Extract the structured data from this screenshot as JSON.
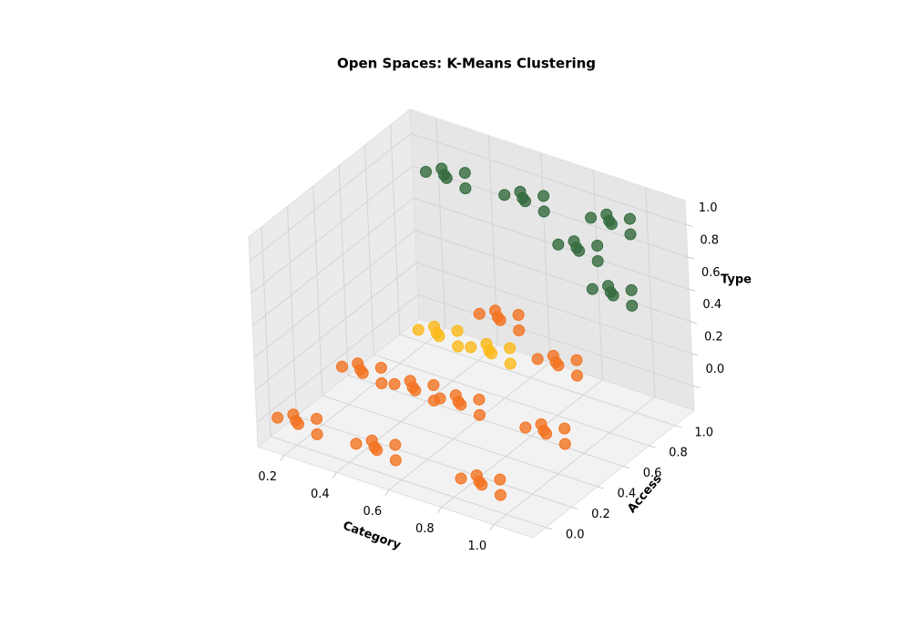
{
  "chart_data": {
    "type": "scatter3d",
    "title": "Open Spaces: K-Means Clustering",
    "xlabel": "Category",
    "ylabel": "Access",
    "zlabel": "Type",
    "xlim": [
      0.1,
      1.15
    ],
    "ylim": [
      -0.1,
      1.15
    ],
    "zlim": [
      -0.15,
      1.15
    ],
    "xticks": [
      0.2,
      0.4,
      0.6,
      0.8,
      {
        "value": 1,
        "label": "1.0"
      }
    ],
    "yticks": [
      {
        "value": 0,
        "label": "0.0"
      },
      0.2,
      0.4,
      0.6,
      0.8,
      {
        "value": 1,
        "label": "1.0"
      }
    ],
    "zticks": [
      {
        "value": 0,
        "label": "0.0"
      },
      0.2,
      0.4,
      0.6,
      0.8,
      {
        "value": 1,
        "label": "1.0"
      }
    ],
    "grid": true,
    "series": [
      {
        "color": "#336b3d",
        "x": [
          0.33,
          0.39,
          0.27,
          0.37,
          0.29,
          0.41,
          0.62,
          0.68,
          0.56,
          0.66,
          0.58,
          0.7,
          0.93,
          0.99,
          0.87,
          0.97,
          0.89,
          1.01,
          0.82,
          0.88,
          0.76,
          0.86,
          0.78,
          0.9,
          0.95,
          1.01,
          0.89,
          0.99,
          0.91,
          1.03
        ],
        "y": [
          0.94,
          0.98,
          0.92,
          0.88,
          1.0,
          0.94,
          0.96,
          1.0,
          0.94,
          0.9,
          1.02,
          0.96,
          1.0,
          1.04,
          0.98,
          0.94,
          1.06,
          1.0,
          0.96,
          1.0,
          0.94,
          0.9,
          1.02,
          0.96,
          0.95,
          0.99,
          0.93,
          0.89,
          1.01,
          0.95
        ],
        "z": [
          1.0,
          1.02,
          1.0,
          1.04,
          0.98,
          0.96,
          1.0,
          1.02,
          1.0,
          1.04,
          0.98,
          0.96,
          1.0,
          1.02,
          1.0,
          1.04,
          0.98,
          0.96,
          0.8,
          0.82,
          0.8,
          0.84,
          0.78,
          0.76,
          0.6,
          0.62,
          0.6,
          0.64,
          0.58,
          0.56
        ]
      },
      {
        "color": "#fbb918",
        "x": [
          0.45,
          0.51,
          0.39,
          0.49,
          0.41,
          0.53,
          0.65,
          0.71,
          0.59,
          0.69,
          0.61,
          0.73
        ],
        "y": [
          0.6,
          0.64,
          0.58,
          0.54,
          0.66,
          0.6,
          0.6,
          0.64,
          0.58,
          0.54,
          0.66,
          0.6
        ],
        "z": [
          0.3,
          0.32,
          0.3,
          0.34,
          0.28,
          0.26,
          0.3,
          0.32,
          0.3,
          0.34,
          0.28,
          0.26
        ]
      },
      {
        "color": "#f37321",
        "x": [
          0.2,
          0.26,
          0.14,
          0.24,
          0.16,
          0.28,
          0.5,
          0.56,
          0.44,
          0.54,
          0.46,
          0.58,
          0.9,
          0.96,
          0.84,
          0.94,
          0.86,
          0.98,
          0.2,
          0.26,
          0.14,
          0.24,
          0.16,
          0.28,
          0.4,
          0.46,
          0.34,
          0.44,
          0.36,
          0.48,
          0.9,
          0.96,
          0.84,
          0.94,
          0.86,
          0.98,
          0.7,
          0.76,
          0.64,
          0.74,
          0.66,
          0.78,
          0.6,
          0.66,
          0.54,
          0.64,
          0.56,
          0.68,
          0.56,
          0.62,
          0.5,
          0.6,
          0.52,
          0.64
        ],
        "y": [
          0,
          0.04,
          -0.02,
          -0.06,
          0.06,
          0,
          0,
          0.04,
          -0.02,
          -0.06,
          0.06,
          0,
          0,
          0.04,
          -0.02,
          -0.06,
          0.06,
          0,
          0.5,
          0.54,
          0.48,
          0.44,
          0.56,
          0.5,
          0.5,
          0.54,
          0.48,
          0.44,
          0.56,
          0.5,
          0.5,
          0.54,
          0.48,
          0.44,
          0.56,
          0.5,
          1.0,
          1.04,
          0.98,
          0.94,
          1.06,
          1.0,
          0.45,
          0.49,
          0.43,
          0.39,
          0.51,
          0.45,
          0.85,
          0.89,
          0.83,
          0.79,
          0.91,
          0.85
        ],
        "z": [
          0,
          0.02,
          0,
          0.04,
          -0.02,
          -0.04,
          0,
          0.02,
          0,
          0.04,
          -0.02,
          -0.04,
          0,
          0.02,
          0,
          0.04,
          -0.02,
          -0.04,
          0,
          0.02,
          0,
          0.04,
          -0.02,
          -0.04,
          0,
          0.02,
          0,
          0.04,
          -0.02,
          -0.04,
          0,
          0.02,
          0,
          0.04,
          -0.02,
          -0.04,
          0,
          0.02,
          0,
          0.04,
          -0.02,
          -0.04,
          0.05,
          0.07,
          0.05,
          0.09,
          0.03,
          0.01,
          0.3,
          0.32,
          0.3,
          0.34,
          0.28,
          0.26
        ]
      }
    ]
  }
}
